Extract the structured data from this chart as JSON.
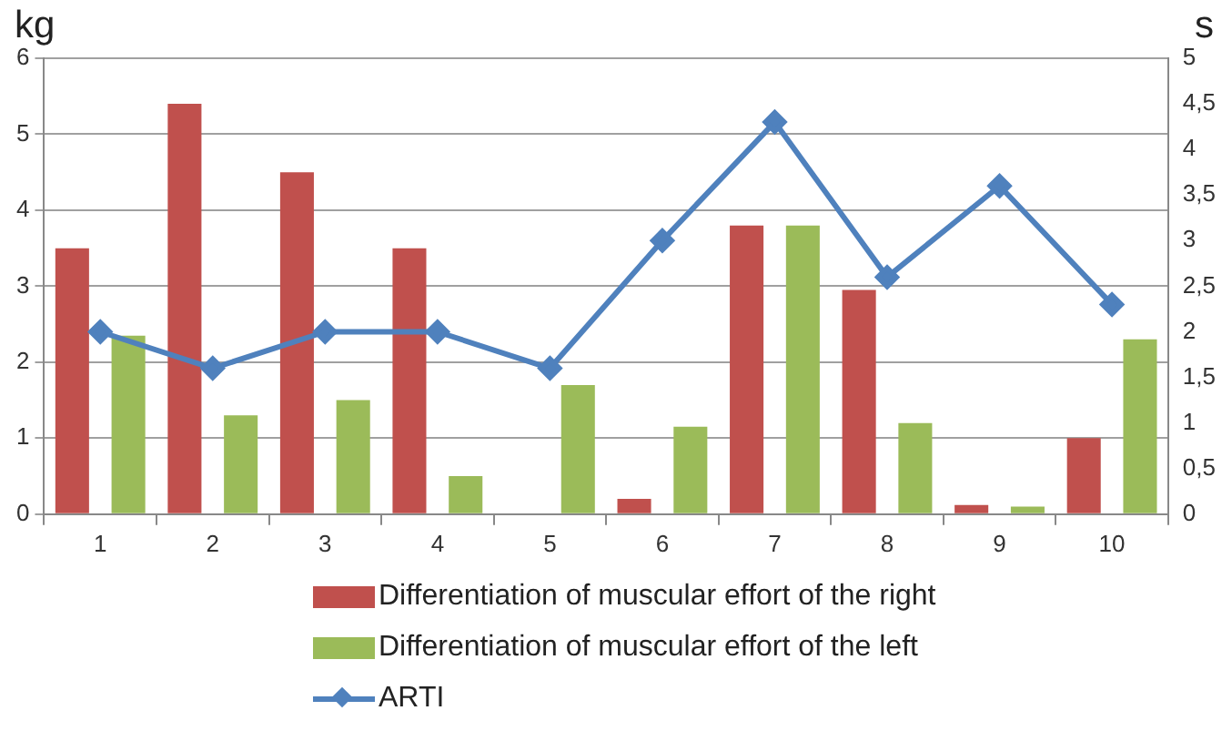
{
  "chart_data": {
    "type": "bar",
    "categories": [
      "1",
      "2",
      "3",
      "4",
      "5",
      "6",
      "7",
      "8",
      "9",
      "10"
    ],
    "ylabel": "kg",
    "y2label": "s",
    "series": [
      {
        "name": "Differentiation of muscular effort of the right",
        "color": "#c0504d",
        "values": [
          3.5,
          5.4,
          4.5,
          3.5,
          0,
          0.2,
          3.8,
          2.95,
          0.12,
          1.0
        ]
      },
      {
        "name": "Differentiation of muscular effort of the left",
        "color": "#9bbb59",
        "values": [
          2.35,
          1.3,
          1.5,
          0.5,
          1.7,
          1.15,
          3.8,
          1.2,
          0.1,
          2.3
        ]
      },
      {
        "name": "ARTI",
        "type": "line",
        "axis": "y2",
        "color": "#4f81bd",
        "marker": "diamond",
        "values": [
          2,
          1.6,
          2,
          2,
          1.6,
          3,
          4.3,
          2.6,
          3.6,
          2.3
        ]
      }
    ],
    "ylim": [
      0,
      6
    ],
    "yticks": [
      0,
      1,
      2,
      3,
      4,
      5,
      6
    ],
    "y2lim": [
      0,
      5
    ],
    "y2ticks": [
      0,
      {
        "value": 0.5,
        "label": "0,5"
      },
      1,
      {
        "value": 1.5,
        "label": "1,5"
      },
      2,
      {
        "value": 2.5,
        "label": "2,5"
      },
      3,
      {
        "value": 3.5,
        "label": "3,5"
      },
      4,
      {
        "value": 4.5,
        "label": "4,5"
      },
      5
    ],
    "grid": "y",
    "legend": "bottom"
  }
}
